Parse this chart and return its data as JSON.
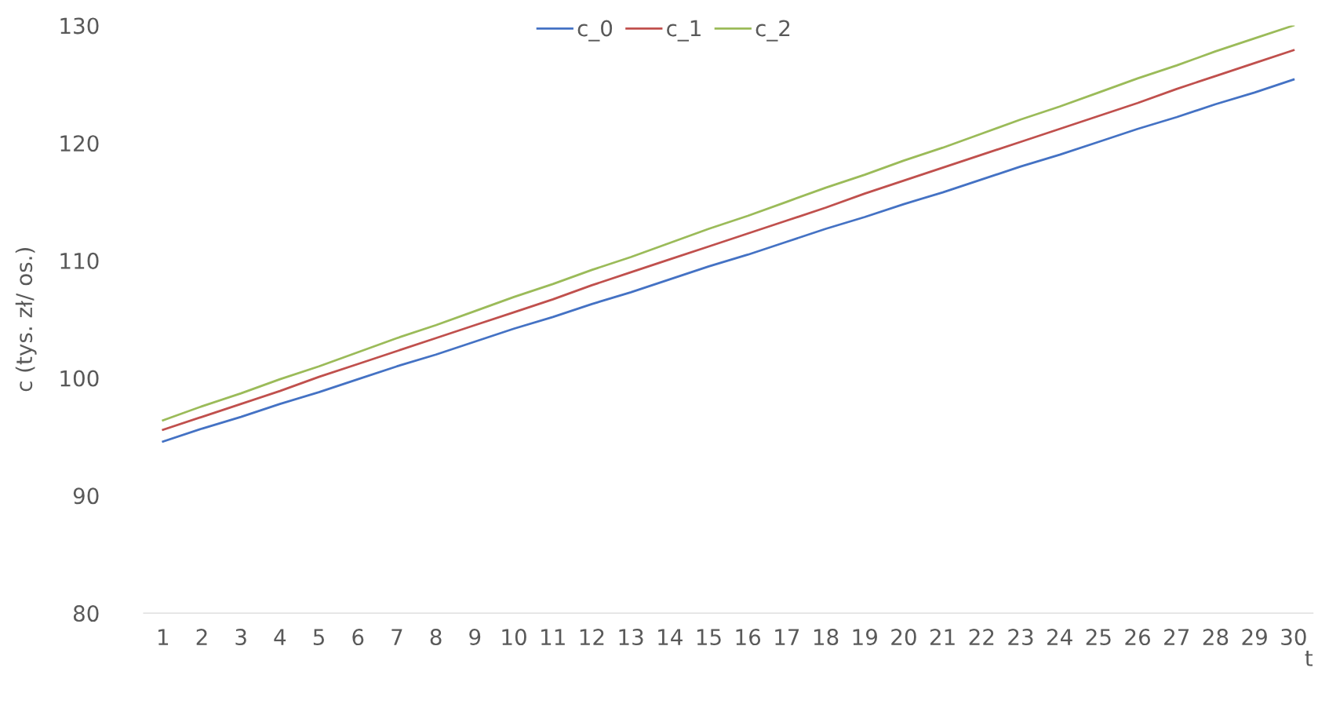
{
  "chart_data": {
    "type": "line",
    "xlabel": "t",
    "ylabel": "c (tys. zł/ os.)",
    "categories": [
      "1",
      "2",
      "3",
      "4",
      "5",
      "6",
      "7",
      "8",
      "9",
      "10",
      "11",
      "12",
      "13",
      "14",
      "15",
      "16",
      "17",
      "18",
      "19",
      "20",
      "21",
      "22",
      "23",
      "24",
      "25",
      "26",
      "27",
      "28",
      "29",
      "30"
    ],
    "series": [
      {
        "name": "c_0",
        "color": "#4472c4",
        "values": [
          94.6,
          95.7,
          96.7,
          97.8,
          98.8,
          99.9,
          101.0,
          102.0,
          103.1,
          104.2,
          105.2,
          106.3,
          107.3,
          108.4,
          109.5,
          110.5,
          111.6,
          112.7,
          113.7,
          114.8,
          115.8,
          116.9,
          118.0,
          119.0,
          120.1,
          121.2,
          122.2,
          123.3,
          124.3,
          125.4
        ]
      },
      {
        "name": "c_1",
        "color": "#c0504d",
        "values": [
          95.6,
          96.7,
          97.8,
          98.9,
          100.1,
          101.2,
          102.3,
          103.4,
          104.5,
          105.6,
          106.7,
          107.9,
          109.0,
          110.1,
          111.2,
          112.3,
          113.4,
          114.5,
          115.7,
          116.8,
          117.9,
          119.0,
          120.1,
          121.2,
          122.3,
          123.4,
          124.6,
          125.7,
          126.8,
          127.9
        ]
      },
      {
        "name": "c_2",
        "color": "#9bbb59",
        "values": [
          96.4,
          97.6,
          98.7,
          99.9,
          101.0,
          102.2,
          103.4,
          104.5,
          105.7,
          106.9,
          108.0,
          109.2,
          110.3,
          111.5,
          112.7,
          113.8,
          115.0,
          116.2,
          117.3,
          118.5,
          119.6,
          120.8,
          122.0,
          123.1,
          124.3,
          125.5,
          126.6,
          127.8,
          128.9,
          130.0
        ]
      }
    ],
    "ylim": [
      80,
      130
    ],
    "yticks": [
      80,
      90,
      100,
      110,
      120,
      130
    ],
    "grid": false,
    "legend": "top",
    "marker": "none",
    "line_style": "solid"
  }
}
